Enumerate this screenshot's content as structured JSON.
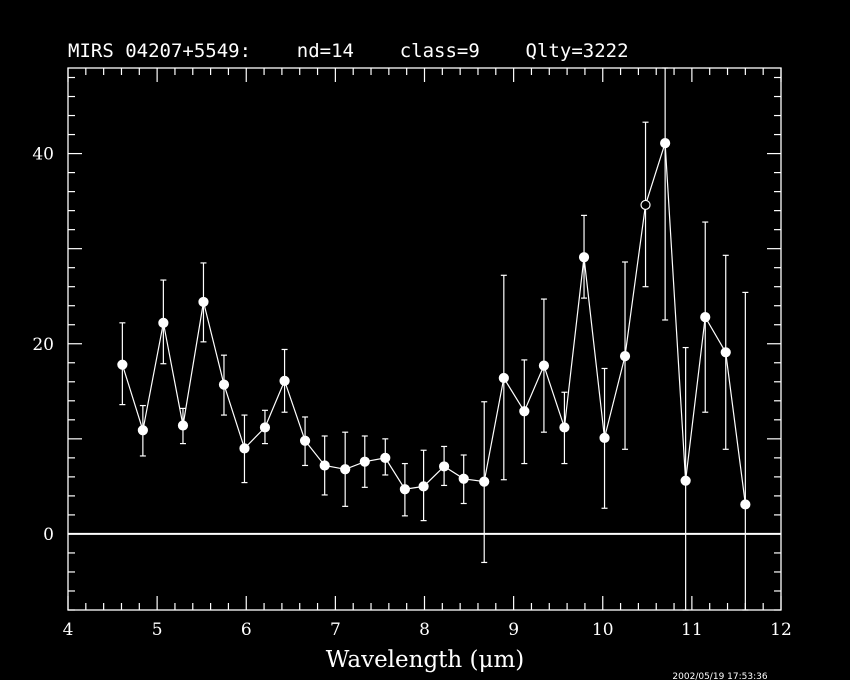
{
  "chart_data": {
    "type": "scatter",
    "title": "MIRS 04207+5549:    nd=14    class=9    Qlty=3222",
    "xlabel": "Wavelength (μm)",
    "ylabel": "",
    "timestamp": "2002/05/19  17:53:36",
    "xlim": [
      4,
      12
    ],
    "ylim": [
      -8,
      49
    ],
    "x_ticks": [
      4,
      5,
      6,
      7,
      8,
      9,
      10,
      11,
      12
    ],
    "x_tick_labels": [
      "4",
      "5",
      "6",
      "7",
      "8",
      "9",
      "10",
      "11",
      "12"
    ],
    "y_ticks": [
      0,
      20,
      40
    ],
    "y_tick_labels": [
      "0",
      "20",
      "40"
    ],
    "zero_line": 0,
    "grid": false,
    "series": [
      {
        "marker": "filled-circle",
        "color": "#ffffff",
        "points": [
          {
            "x": 4.61,
            "y": 17.8,
            "err_low": 13.6,
            "err_high": 22.2
          },
          {
            "x": 4.84,
            "y": 10.9,
            "err_low": 8.2,
            "err_high": 13.5
          },
          {
            "x": 5.07,
            "y": 22.2,
            "err_low": 17.9,
            "err_high": 26.7
          },
          {
            "x": 5.29,
            "y": 11.4,
            "err_low": 9.5,
            "err_high": 13.2
          },
          {
            "x": 5.52,
            "y": 24.4,
            "err_low": 20.2,
            "err_high": 28.5
          },
          {
            "x": 5.75,
            "y": 15.7,
            "err_low": 12.5,
            "err_high": 18.8
          },
          {
            "x": 5.98,
            "y": 9.0,
            "err_low": 5.4,
            "err_high": 12.5
          },
          {
            "x": 6.21,
            "y": 11.2,
            "err_low": 9.5,
            "err_high": 13.0
          },
          {
            "x": 6.43,
            "y": 16.1,
            "err_low": 12.8,
            "err_high": 19.4
          },
          {
            "x": 6.66,
            "y": 9.8,
            "err_low": 7.2,
            "err_high": 12.3
          },
          {
            "x": 6.88,
            "y": 7.2,
            "err_low": 4.1,
            "err_high": 10.3
          },
          {
            "x": 7.11,
            "y": 6.8,
            "err_low": 2.9,
            "err_high": 10.7
          },
          {
            "x": 7.33,
            "y": 7.6,
            "err_low": 4.9,
            "err_high": 10.3
          },
          {
            "x": 7.56,
            "y": 8.0,
            "err_low": 6.2,
            "err_high": 10.0
          },
          {
            "x": 7.78,
            "y": 4.7,
            "err_low": 1.9,
            "err_high": 7.4
          },
          {
            "x": 7.99,
            "y": 5.0,
            "err_low": 1.4,
            "err_high": 8.8
          },
          {
            "x": 8.22,
            "y": 7.1,
            "err_low": 5.1,
            "err_high": 9.2
          },
          {
            "x": 8.44,
            "y": 5.8,
            "err_low": 3.2,
            "err_high": 8.3
          },
          {
            "x": 8.67,
            "y": 5.5,
            "err_low": -3.0,
            "err_high": 13.9
          },
          {
            "x": 8.89,
            "y": 16.4,
            "err_low": 5.7,
            "err_high": 27.2
          },
          {
            "x": 9.12,
            "y": 12.9,
            "err_low": 7.4,
            "err_high": 18.3
          },
          {
            "x": 9.34,
            "y": 17.7,
            "err_low": 10.7,
            "err_high": 24.7
          },
          {
            "x": 9.57,
            "y": 11.2,
            "err_low": 7.4,
            "err_high": 14.9
          },
          {
            "x": 9.79,
            "y": 29.1,
            "err_low": 24.8,
            "err_high": 33.5
          },
          {
            "x": 10.02,
            "y": 10.1,
            "err_low": 2.7,
            "err_high": 17.4
          },
          {
            "x": 10.25,
            "y": 18.7,
            "err_low": 8.9,
            "err_high": 28.6
          },
          {
            "x": 10.48,
            "y": 34.6,
            "err_low": 26.0,
            "err_high": 43.3,
            "marker": "open-circle"
          },
          {
            "x": 10.7,
            "y": 41.1,
            "err_low": 22.5,
            "err_high": 49.0
          },
          {
            "x": 10.93,
            "y": 5.6,
            "err_low": -8.0,
            "err_high": 19.6
          },
          {
            "x": 11.15,
            "y": 22.8,
            "err_low": 12.8,
            "err_high": 32.8
          },
          {
            "x": 11.38,
            "y": 19.1,
            "err_low": 8.9,
            "err_high": 29.3
          },
          {
            "x": 11.6,
            "y": 3.1,
            "err_low": -8.0,
            "err_high": 25.4
          }
        ]
      }
    ]
  }
}
